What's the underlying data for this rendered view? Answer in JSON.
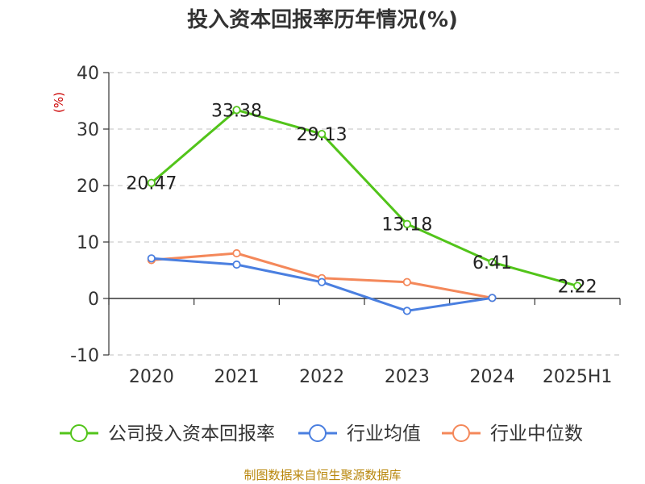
{
  "chart_data": {
    "type": "line",
    "title": "投入资本回报率历年情况(%)",
    "ylabel": "(%)",
    "categories": [
      "2020",
      "2021",
      "2022",
      "2023",
      "2024",
      "2025H1"
    ],
    "ylim": [
      -10,
      40
    ],
    "yticks": [
      "40",
      "30",
      "20",
      "10",
      "0",
      "-10"
    ],
    "yticks_values": [
      40,
      30,
      20,
      10,
      0,
      -10
    ],
    "grid": true,
    "legend_position": "bottom",
    "series": [
      {
        "name": "公司投入资本回报率",
        "color": "#52c41a",
        "values": [
          20.47,
          33.38,
          29.13,
          13.18,
          6.41,
          2.22
        ],
        "labels": [
          "20.47",
          "33.38",
          "29.13",
          "13.18",
          "6.41",
          "2.22"
        ]
      },
      {
        "name": "行业均值",
        "color": "#4a7fe0",
        "values": [
          7.1,
          6.0,
          2.9,
          -2.2,
          0.1,
          null
        ]
      },
      {
        "name": "行业中位数",
        "color": "#f4885a",
        "values": [
          6.8,
          8.0,
          3.6,
          2.9,
          0.1,
          null
        ]
      }
    ],
    "source": "制图数据来自恒生聚源数据库"
  }
}
